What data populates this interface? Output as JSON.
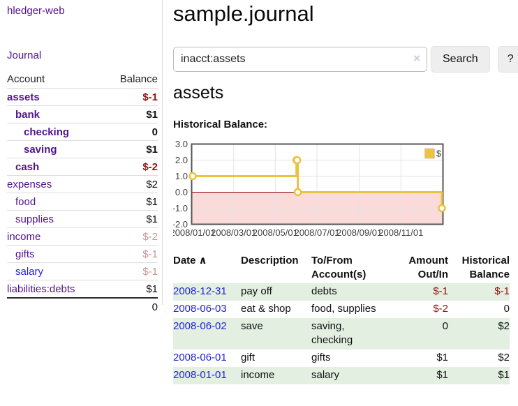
{
  "colors": {
    "accent_purple": "#52148C",
    "link_blue": "#2323DC",
    "negative": "#8E1313",
    "negative_soft": "#C99595",
    "row_stripe": "#E2EFE1",
    "chart_line": "#EDC240",
    "chart_negative_bg": "#FBDADA",
    "chart_zero_line": "#8B0000",
    "chart_border": "#545454",
    "chart_grid": "#E3E3E3"
  },
  "app": {
    "title": "hledger-web",
    "nav_journal": "Journal"
  },
  "sidebar": {
    "header": {
      "account": "Account",
      "balance": "Balance"
    },
    "accounts": [
      {
        "name": "assets",
        "indent": 0,
        "bold": true,
        "balance": "$-1",
        "balance_style": "neg-strong"
      },
      {
        "name": "bank",
        "indent": 1,
        "bold": true,
        "balance": "$1",
        "balance_style": "pos"
      },
      {
        "name": "checking",
        "indent": 2,
        "bold": true,
        "balance": "0",
        "balance_style": "pos"
      },
      {
        "name": "saving",
        "indent": 2,
        "bold": true,
        "balance": "$1",
        "balance_style": "pos"
      },
      {
        "name": "cash",
        "indent": 1,
        "bold": true,
        "balance": "$-2",
        "balance_style": "neg-strong"
      },
      {
        "name": "expenses",
        "indent": 0,
        "bold": false,
        "balance": "$2",
        "balance_style": "pos"
      },
      {
        "name": "food",
        "indent": 1,
        "bold": false,
        "balance": "$1",
        "balance_style": "pos"
      },
      {
        "name": "supplies",
        "indent": 1,
        "bold": false,
        "balance": "$1",
        "balance_style": "pos"
      },
      {
        "name": "income",
        "indent": 0,
        "bold": false,
        "balance": "$-2",
        "balance_style": "neg-soft"
      },
      {
        "name": "gifts",
        "indent": 1,
        "bold": false,
        "balance": "$-1",
        "balance_style": "neg-soft"
      },
      {
        "name": "salary",
        "indent": 1,
        "bold": false,
        "balance": "$-1",
        "balance_style": "neg-soft",
        "link_color": "blue"
      },
      {
        "name": "liabilities:debts",
        "indent": 0,
        "bold": false,
        "balance": "$1",
        "balance_style": "pos"
      }
    ],
    "total": "0"
  },
  "header": {
    "title": "sample.journal"
  },
  "search": {
    "value": "inacct:assets",
    "clear_icon": "×",
    "button_label": "Search",
    "help_label": "?"
  },
  "account_page": {
    "heading": "assets",
    "chart_label": "Historical Balance:"
  },
  "chart_data": {
    "type": "line",
    "step": true,
    "title": "Historical Balance",
    "legend": "$",
    "xlim": [
      "2008-01-01",
      "2008-12-31"
    ],
    "ylim": [
      -2,
      3
    ],
    "y_ticks": [
      [
        "3.0",
        3
      ],
      [
        "2.0",
        2
      ],
      [
        "1.0",
        1
      ],
      [
        "0.0",
        0
      ],
      [
        "-1.0",
        -1
      ],
      [
        "-2.0",
        -2
      ]
    ],
    "x_ticks": [
      [
        "2008/01/01",
        "2008-01-01"
      ],
      [
        "2008/03/01",
        "2008-03-01"
      ],
      [
        "2008/05/01",
        "2008-05-01"
      ],
      [
        "2008/07/01",
        "2008-07-01"
      ],
      [
        "2008/09/01",
        "2008-09-01"
      ],
      [
        "2008/11/01",
        "2008-11-01"
      ]
    ],
    "series": [
      {
        "name": "$",
        "points": [
          [
            "2008-01-01",
            1
          ],
          [
            "2008-06-01",
            2
          ],
          [
            "2008-06-02",
            2
          ],
          [
            "2008-06-03",
            0
          ],
          [
            "2008-12-31",
            -1
          ]
        ]
      }
    ]
  },
  "register": {
    "columns": {
      "date": "Date",
      "sort_icon": "∧",
      "description": "Description",
      "tofrom": "To/From Account(s)",
      "amount": "Amount Out/In",
      "balance": "Historical Balance"
    },
    "rows": [
      {
        "date": "2008-12-31",
        "description": "pay off",
        "accounts": "debts",
        "amount": "$-1",
        "amount_negative": true,
        "balance": "$-1",
        "balance_negative": true
      },
      {
        "date": "2008-06-03",
        "description": "eat & shop",
        "accounts": "food, supplies",
        "amount": "$-2",
        "amount_negative": true,
        "balance": "0",
        "balance_negative": false
      },
      {
        "date": "2008-06-02",
        "description": "save",
        "accounts": "saving, checking",
        "amount": "0",
        "amount_negative": false,
        "balance": "$2",
        "balance_negative": false
      },
      {
        "date": "2008-06-01",
        "description": "gift",
        "accounts": "gifts",
        "amount": "$1",
        "amount_negative": false,
        "balance": "$2",
        "balance_negative": false
      },
      {
        "date": "2008-01-01",
        "description": "income",
        "accounts": "salary",
        "amount": "$1",
        "amount_negative": false,
        "balance": "$1",
        "balance_negative": false
      }
    ]
  }
}
